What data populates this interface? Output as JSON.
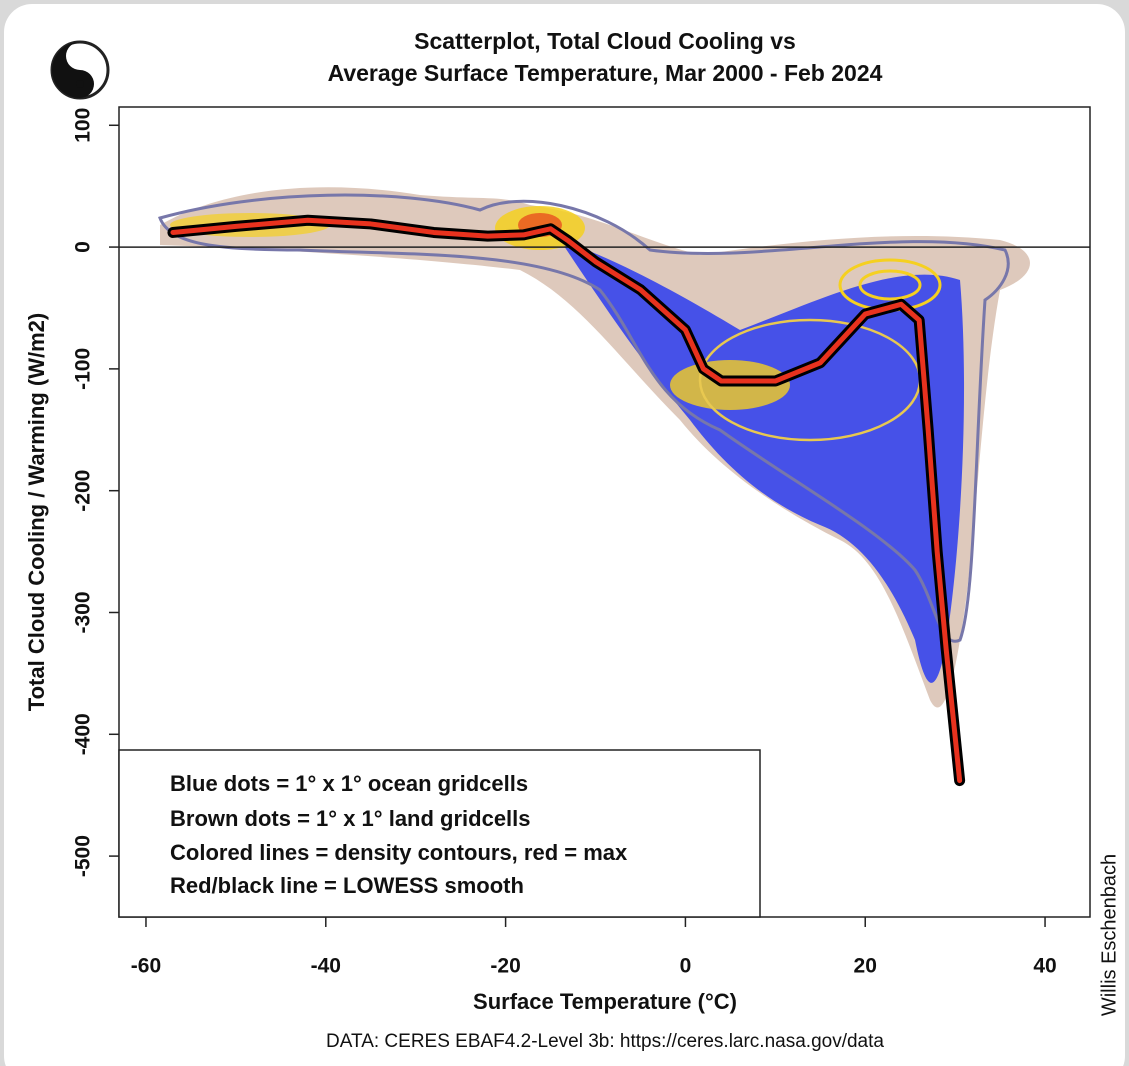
{
  "chart_data": {
    "type": "line",
    "title": [
      "Scatterplot, Total Cloud Cooling vs",
      "Average Surface Temperature, Mar 2000 - Feb 2024"
    ],
    "x_label": "Surface Temperature (°C)",
    "y_label": "Total Cloud Cooling / Warming (W/m2)",
    "xlim": [
      -63,
      45
    ],
    "ylim": [
      -550,
      115
    ],
    "xticks": [
      -60,
      -40,
      -20,
      0,
      20,
      40
    ],
    "yticks": [
      100,
      0,
      -100,
      -200,
      -300,
      -400,
      -500
    ],
    "hlines": [
      0
    ],
    "annotations": [
      "Blue dots = 1° x 1° ocean gridcells",
      "Brown dots = 1° x 1° land gridcells",
      "Colored lines = density contours, red = max",
      "Red/black line = LOWESS smooth"
    ],
    "source": "DATA: CERES EBAF4.2-Level 3b: https://ceres.larc.nasa.gov/data",
    "credit": "Willis Eschenbach",
    "series": [
      {
        "color": "#e8321e",
        "outline_color": "#000000",
        "x": [
          -57,
          -50,
          -42,
          -35,
          -28,
          -22,
          -18,
          -15,
          -13,
          -10,
          -5,
          0,
          2,
          4,
          10,
          15,
          20,
          24,
          26,
          27,
          28,
          29,
          30.5
        ],
        "values": [
          12,
          17,
          22,
          19,
          12,
          9,
          10,
          15,
          5,
          -12,
          -35,
          -68,
          -100,
          -110,
          -110,
          -95,
          -55,
          -47,
          -60,
          -150,
          -250,
          -330,
          -438
        ]
      }
    ]
  }
}
